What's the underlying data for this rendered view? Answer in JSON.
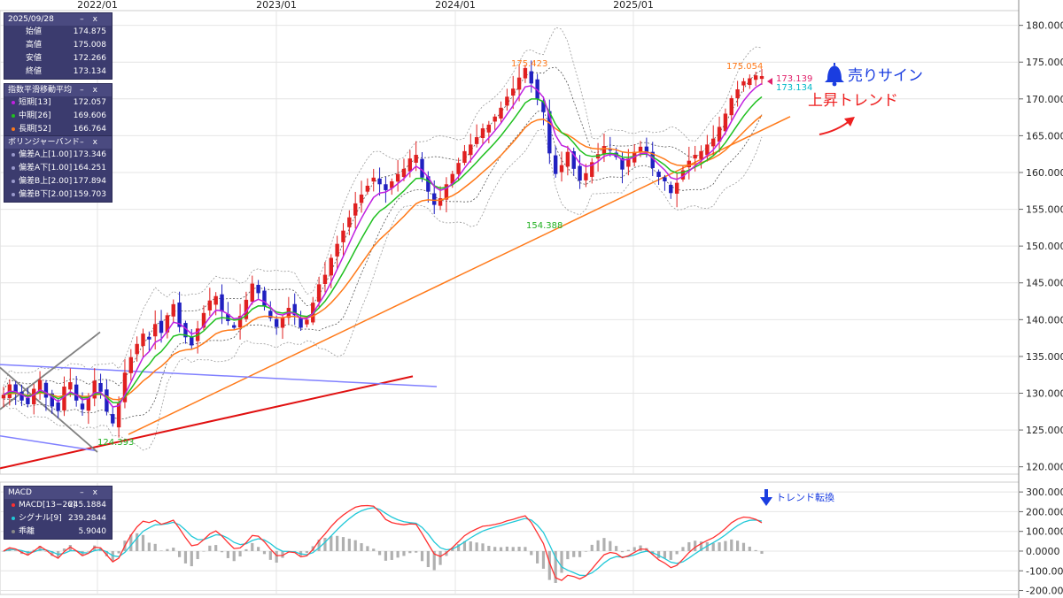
{
  "chart_data": {
    "type": "candlestick",
    "x_labels": [
      "2022/01",
      "2023/01",
      "2024/01",
      "2025/01"
    ],
    "y_ticks": [
      "120.000",
      "125.000",
      "130.000",
      "135.000",
      "140.000",
      "145.000",
      "150.000",
      "155.000",
      "160.000",
      "165.000",
      "170.000",
      "175.000",
      "180.000"
    ],
    "y_range": [
      119,
      182
    ],
    "macd_ticks": [
      "300.0000",
      "200.0000",
      "100.0000",
      "0.0000",
      "-100.0000",
      "-200.0000"
    ],
    "macd_range": [
      -220,
      350
    ],
    "ohlc_panel": {
      "date": "2025/09/28",
      "rows": [
        {
          "label": "始値",
          "value": "174.875"
        },
        {
          "label": "高値",
          "value": "175.008"
        },
        {
          "label": "安値",
          "value": "172.266"
        },
        {
          "label": "終値",
          "value": "173.134"
        }
      ]
    },
    "ema_panel": {
      "title": "指数平滑移動平均",
      "rows": [
        {
          "label": "短期[13]",
          "value": "172.057",
          "color": "#c020e0"
        },
        {
          "label": "中期[26]",
          "value": "169.606",
          "color": "#20c020"
        },
        {
          "label": "長期[52]",
          "value": "166.764",
          "color": "#ff7a1a"
        }
      ]
    },
    "bb_panel": {
      "title": "ボリンジャーバンド",
      "rows": [
        {
          "label": "偏差A上[1.00]",
          "value": "173.346"
        },
        {
          "label": "偏差A下[1.00]",
          "value": "164.251"
        },
        {
          "label": "偏差B上[2.00]",
          "value": "177.894"
        },
        {
          "label": "偏差B下[2.00]",
          "value": "159.703"
        }
      ]
    },
    "macd_panel": {
      "title": "MACD",
      "rows": [
        {
          "label": "MACD[13−26]",
          "value": "245.1884",
          "color": "#ff3030"
        },
        {
          "label": "シグナル[9]",
          "value": "239.2844",
          "color": "#20c8d8"
        },
        {
          "label": "乖離",
          "value": "5.9040",
          "color": "#888888"
        }
      ]
    },
    "annotations": {
      "high1": "175.423",
      "high2": "175.054",
      "low1": "154.388",
      "low0": "124.393",
      "price_a": "173.139",
      "price_b": "173.134",
      "sell_sign": "売りサイン",
      "uptrend": "上昇トレンド",
      "trend_change": "トレンド転換"
    },
    "colors": {
      "up": "#e02020",
      "down": "#2020c0",
      "ema_short": "#c020e0",
      "ema_mid": "#20c020",
      "ema_long": "#ff7a1a",
      "macd": "#ff3030",
      "signal": "#20c8d8",
      "trendline_orange": "#ff7a1a",
      "trendline_red": "#e01010",
      "trendline_blue": "#8080ff",
      "trendline_gray": "#808080"
    },
    "close_series": [
      129.8,
      131.2,
      130.1,
      129.0,
      128.5,
      130.6,
      131.8,
      129.4,
      128.2,
      127.6,
      130.9,
      131.5,
      129.0,
      127.8,
      129.6,
      131.7,
      130.2,
      127.5,
      125.9,
      128.6,
      132.8,
      134.9,
      136.7,
      138.1,
      137.3,
      139.4,
      138.2,
      140.6,
      142.1,
      139.0,
      137.6,
      136.5,
      138.8,
      140.9,
      142.6,
      143.2,
      141.1,
      139.8,
      138.9,
      140.5,
      142.7,
      144.9,
      143.6,
      141.8,
      140.2,
      139.0,
      140.3,
      141.6,
      140.6,
      138.9,
      140.0,
      142.3,
      144.8,
      146.1,
      148.4,
      150.3,
      152.1,
      153.9,
      155.8,
      157.0,
      158.2,
      159.3,
      158.4,
      157.6,
      158.8,
      159.8,
      160.5,
      161.9,
      162.4,
      159.3,
      157.4,
      155.6,
      156.5,
      158.4,
      159.8,
      161.3,
      162.9,
      163.8,
      164.8,
      166.0,
      166.5,
      167.6,
      168.8,
      170.3,
      171.4,
      172.9,
      174.2,
      172.1,
      170.0,
      168.2,
      162.6,
      159.8,
      161.0,
      162.8,
      160.5,
      158.9,
      159.9,
      161.4,
      162.5,
      163.6,
      163.0,
      162.1,
      160.4,
      161.9,
      162.8,
      163.5,
      162.7,
      160.6,
      159.4,
      158.8,
      157.2,
      158.6,
      160.3,
      161.6,
      162.4,
      162.9,
      163.8,
      164.6,
      166.2,
      168.0,
      170.1,
      171.3,
      172.4,
      172.8,
      173.2,
      173.1
    ]
  }
}
